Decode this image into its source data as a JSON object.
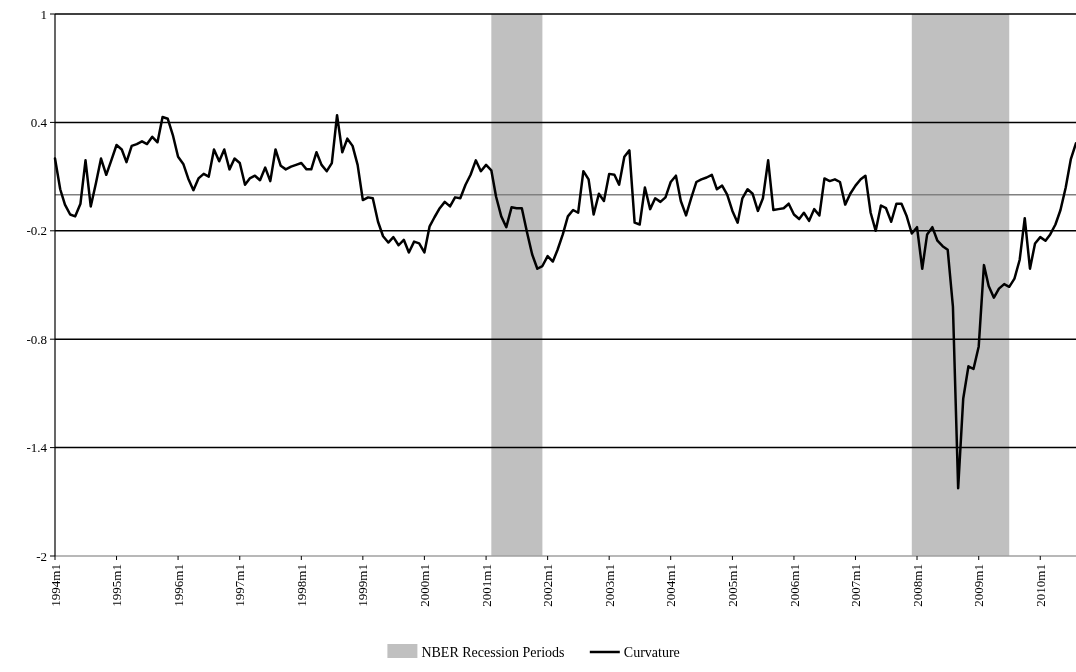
{
  "chart_data": {
    "type": "line",
    "x": [
      "1994-01",
      "1994-02",
      "1994-03",
      "1994-04",
      "1994-05",
      "1994-06",
      "1994-07",
      "1994-08",
      "1994-09",
      "1994-10",
      "1994-11",
      "1994-12",
      "1995-01",
      "1995-02",
      "1995-03",
      "1995-04",
      "1995-05",
      "1995-06",
      "1995-07",
      "1995-08",
      "1995-09",
      "1995-10",
      "1995-11",
      "1995-12",
      "1996-01",
      "1996-02",
      "1996-03",
      "1996-04",
      "1996-05",
      "1996-06",
      "1996-07",
      "1996-08",
      "1996-09",
      "1996-10",
      "1996-11",
      "1996-12",
      "1997-01",
      "1997-02",
      "1997-03",
      "1997-04",
      "1997-05",
      "1997-06",
      "1997-07",
      "1997-08",
      "1997-09",
      "1997-10",
      "1997-11",
      "1997-12",
      "1998-01",
      "1998-02",
      "1998-03",
      "1998-04",
      "1998-05",
      "1998-06",
      "1998-07",
      "1998-08",
      "1998-09",
      "1998-10",
      "1998-11",
      "1998-12",
      "1999-01",
      "1999-02",
      "1999-03",
      "1999-04",
      "1999-05",
      "1999-06",
      "1999-07",
      "1999-08",
      "1999-09",
      "1999-10",
      "1999-11",
      "1999-12",
      "2000-01",
      "2000-02",
      "2000-03",
      "2000-04",
      "2000-05",
      "2000-06",
      "2000-07",
      "2000-08",
      "2000-09",
      "2000-10",
      "2000-11",
      "2000-12",
      "2001-01",
      "2001-02",
      "2001-03",
      "2001-04",
      "2001-05",
      "2001-06",
      "2001-07",
      "2001-08",
      "2001-09",
      "2001-10",
      "2001-11",
      "2001-12",
      "2002-01",
      "2002-02",
      "2002-03",
      "2002-04",
      "2002-05",
      "2002-06",
      "2002-07",
      "2002-08",
      "2002-09",
      "2002-10",
      "2002-11",
      "2002-12",
      "2003-01",
      "2003-02",
      "2003-03",
      "2003-04",
      "2003-05",
      "2003-06",
      "2003-07",
      "2003-08",
      "2003-09",
      "2003-10",
      "2003-11",
      "2003-12",
      "2004-01",
      "2004-02",
      "2004-03",
      "2004-04",
      "2004-05",
      "2004-06",
      "2004-07",
      "2004-08",
      "2004-09",
      "2004-10",
      "2004-11",
      "2004-12",
      "2005-01",
      "2005-02",
      "2005-03",
      "2005-04",
      "2005-05",
      "2005-06",
      "2005-07",
      "2005-08",
      "2005-09",
      "2005-10",
      "2005-11",
      "2005-12",
      "2006-01",
      "2006-02",
      "2006-03",
      "2006-04",
      "2006-05",
      "2006-06",
      "2006-07",
      "2006-08",
      "2006-09",
      "2006-10",
      "2006-11",
      "2006-12",
      "2007-01",
      "2007-02",
      "2007-03",
      "2007-04",
      "2007-05",
      "2007-06",
      "2007-07",
      "2007-08",
      "2007-09",
      "2007-10",
      "2007-11",
      "2007-12",
      "2008-01",
      "2008-02",
      "2008-03",
      "2008-04",
      "2008-05",
      "2008-06",
      "2008-07",
      "2008-08",
      "2008-09",
      "2008-10",
      "2008-11",
      "2008-12",
      "2009-01",
      "2009-02",
      "2009-03",
      "2009-04",
      "2009-05",
      "2009-06",
      "2009-07",
      "2009-08",
      "2009-09",
      "2009-10",
      "2009-11",
      "2009-12",
      "2010-01",
      "2010-02",
      "2010-03",
      "2010-04",
      "2010-05",
      "2010-06",
      "2010-07",
      "2010-08"
    ],
    "series": [
      {
        "name": "Curvature",
        "color": "#000000",
        "values": [
          0.2,
          0.03,
          -0.055,
          -0.11,
          -0.12,
          -0.05,
          0.19,
          -0.065,
          0.065,
          0.2,
          0.11,
          0.19,
          0.275,
          0.25,
          0.18,
          0.27,
          0.28,
          0.295,
          0.28,
          0.32,
          0.29,
          0.43,
          0.42,
          0.33,
          0.21,
          0.17,
          0.09,
          0.025,
          0.09,
          0.115,
          0.1,
          0.25,
          0.185,
          0.25,
          0.14,
          0.2,
          0.175,
          0.055,
          0.09,
          0.105,
          0.08,
          0.15,
          0.075,
          0.25,
          0.16,
          0.14,
          0.155,
          0.165,
          0.175,
          0.14,
          0.14,
          0.235,
          0.165,
          0.13,
          0.175,
          0.44,
          0.235,
          0.31,
          0.27,
          0.165,
          -0.03,
          -0.015,
          -0.02,
          -0.15,
          -0.23,
          -0.265,
          -0.235,
          -0.28,
          -0.25,
          -0.32,
          -0.26,
          -0.27,
          -0.32,
          -0.175,
          -0.125,
          -0.075,
          -0.04,
          -0.065,
          -0.015,
          -0.02,
          0.055,
          0.11,
          0.19,
          0.13,
          0.165,
          0.135,
          -0.01,
          -0.12,
          -0.18,
          -0.07,
          -0.075,
          -0.075,
          -0.21,
          -0.33,
          -0.41,
          -0.395,
          -0.34,
          -0.37,
          -0.305,
          -0.22,
          -0.12,
          -0.085,
          -0.1,
          0.13,
          0.085,
          -0.11,
          0.005,
          -0.035,
          0.115,
          0.11,
          0.055,
          0.21,
          0.245,
          -0.155,
          -0.165,
          0.04,
          -0.08,
          -0.02,
          -0.04,
          -0.015,
          0.07,
          0.105,
          -0.035,
          -0.115,
          -0.02,
          0.07,
          0.085,
          0.095,
          0.11,
          0.03,
          0.05,
          0.0,
          -0.09,
          -0.155,
          -0.02,
          0.03,
          0.005,
          -0.09,
          -0.02,
          0.19,
          -0.085,
          -0.08,
          -0.075,
          -0.05,
          -0.11,
          -0.135,
          -0.1,
          -0.145,
          -0.08,
          -0.115,
          0.09,
          0.075,
          0.085,
          0.07,
          -0.055,
          0.005,
          0.05,
          0.085,
          0.105,
          -0.1,
          -0.2,
          -0.06,
          -0.075,
          -0.15,
          -0.05,
          -0.05,
          -0.12,
          -0.215,
          -0.18,
          -0.41,
          -0.22,
          -0.18,
          -0.255,
          -0.285,
          -0.305,
          -0.62,
          -1.625,
          -1.13,
          -0.95,
          -0.965,
          -0.84,
          -0.39,
          -0.505,
          -0.57,
          -0.52,
          -0.495,
          -0.51,
          -0.465,
          -0.36,
          -0.13,
          -0.41,
          -0.27,
          -0.235,
          -0.255,
          -0.22,
          -0.165,
          -0.085,
          0.04,
          0.195,
          0.285
        ]
      }
    ],
    "xlim": [
      "1994-01",
      "2010-08"
    ],
    "xticks": [
      {
        "value": "1994-01",
        "label": "1994m1"
      },
      {
        "value": "1995-01",
        "label": "1995m1"
      },
      {
        "value": "1996-01",
        "label": "1996m1"
      },
      {
        "value": "1997-01",
        "label": "1997m1"
      },
      {
        "value": "1998-01",
        "label": "1998m1"
      },
      {
        "value": "1999-01",
        "label": "1999m1"
      },
      {
        "value": "2000-01",
        "label": "2000m1"
      },
      {
        "value": "2001-01",
        "label": "2001m1"
      },
      {
        "value": "2002-01",
        "label": "2002m1"
      },
      {
        "value": "2003-01",
        "label": "2003m1"
      },
      {
        "value": "2004-01",
        "label": "2004m1"
      },
      {
        "value": "2005-01",
        "label": "2005m1"
      },
      {
        "value": "2006-01",
        "label": "2006m1"
      },
      {
        "value": "2007-01",
        "label": "2007m1"
      },
      {
        "value": "2008-01",
        "label": "2008m1"
      },
      {
        "value": "2009-01",
        "label": "2009m1"
      },
      {
        "value": "2010-01",
        "label": "2010m1"
      }
    ],
    "ylim": [
      -2,
      1
    ],
    "yticks": [
      -2,
      -1.4,
      -0.8,
      -0.2,
      0.4,
      1
    ],
    "grid": "y",
    "bands": [
      {
        "axis": "x",
        "from": "2001-02",
        "to": "2001-12",
        "label": "NBER Recession Periods",
        "color": "#c0c0c0"
      },
      {
        "axis": "x",
        "from": "2007-12",
        "to": "2009-07",
        "color": "#c0c0c0"
      }
    ],
    "ref_lines": [
      {
        "axis": "y",
        "value": 0,
        "color": "#808080"
      }
    ],
    "legend": "bottom",
    "marker": "none",
    "line_style": "solid"
  }
}
